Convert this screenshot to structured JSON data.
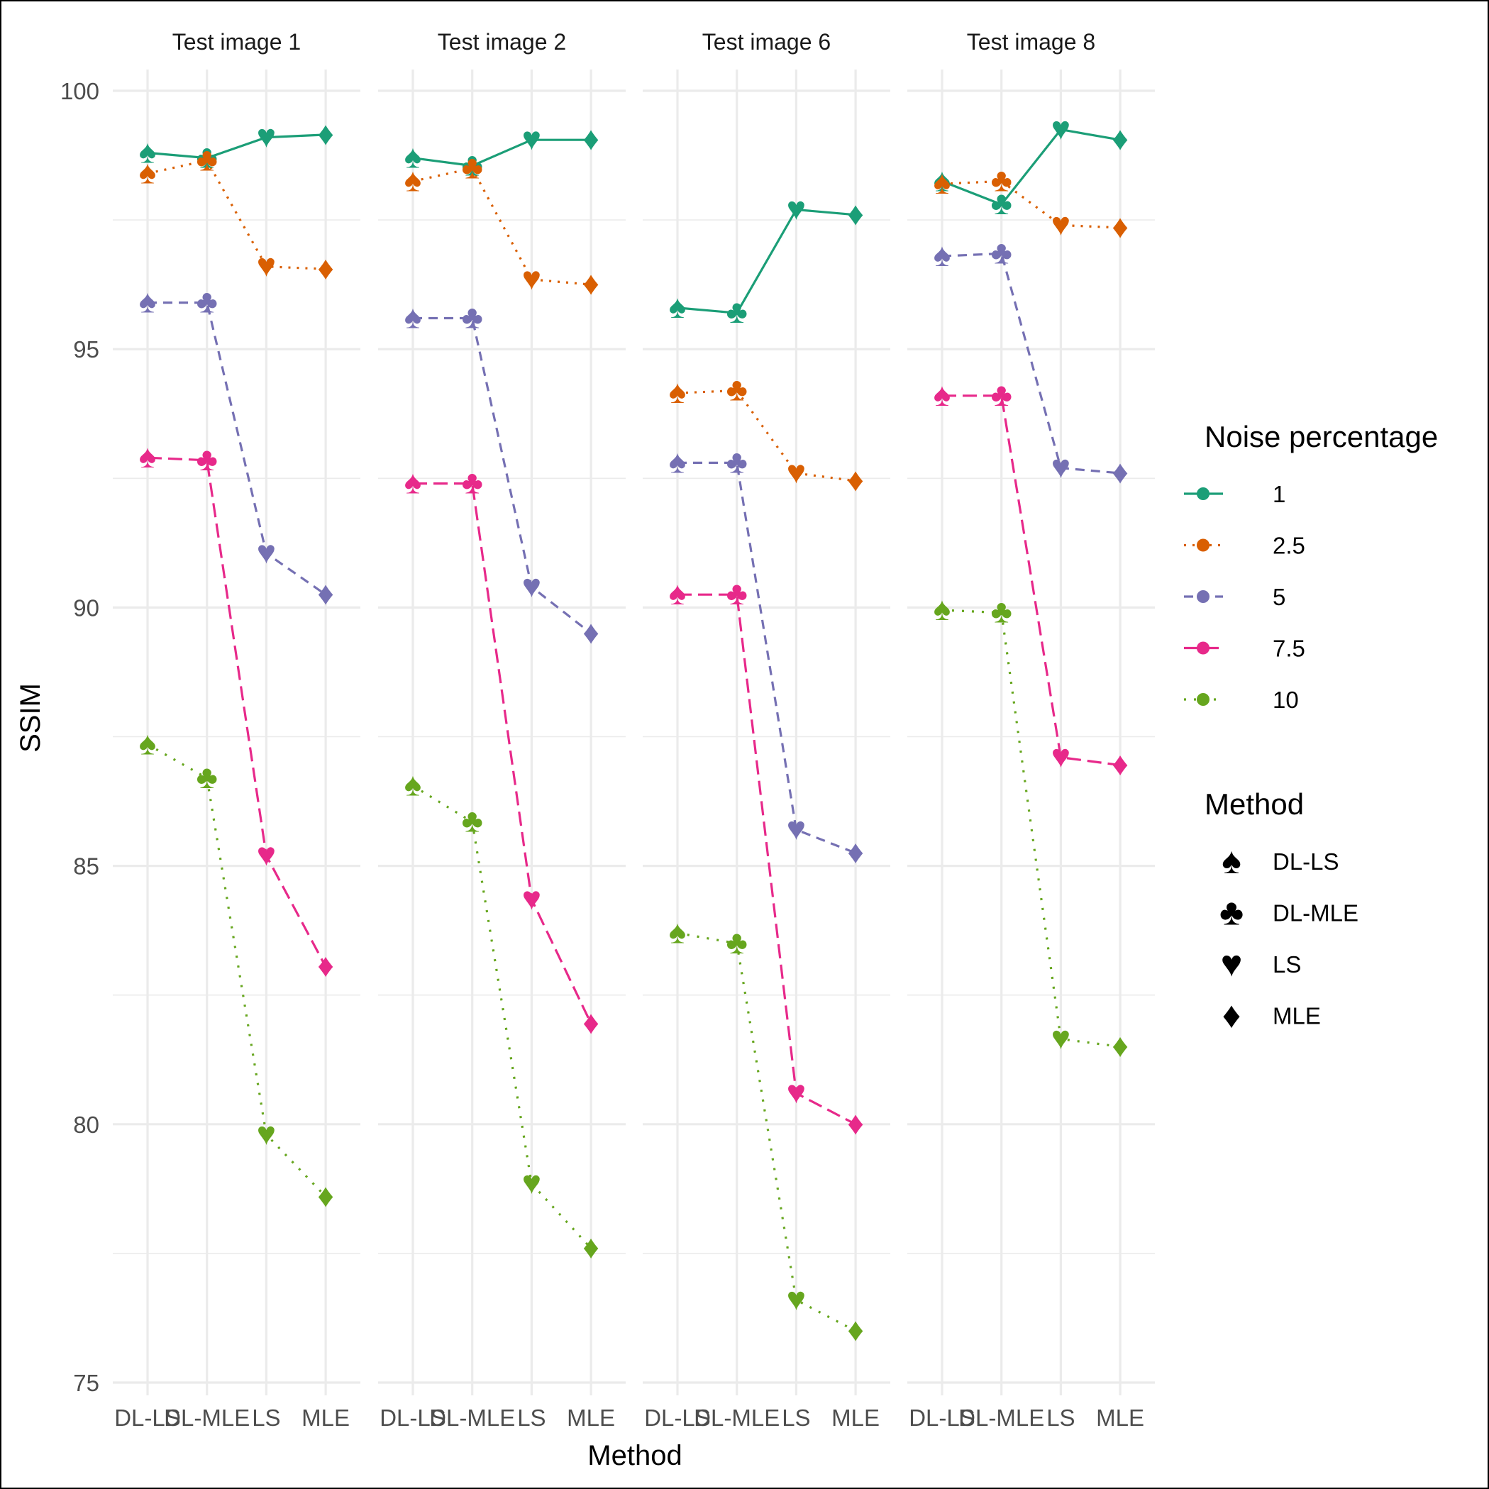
{
  "chart_data": {
    "type": "line",
    "xlabel": "Method",
    "ylabel": "SSIM",
    "ylim": [
      75,
      100
    ],
    "y_ticks": [
      75,
      80,
      85,
      90,
      95,
      100
    ],
    "y_tick_labels": [
      "75",
      "80",
      "85",
      "90",
      "95",
      "100"
    ],
    "categories": [
      "DL-LS",
      "DL-MLE",
      "LS",
      "MLE"
    ],
    "grid": true,
    "legend_position": "right",
    "legend_noise": {
      "title": "Noise percentage",
      "entries": [
        {
          "label": "1",
          "color": "#1b9e77",
          "dash": "solid"
        },
        {
          "label": "2.5",
          "color": "#d95f02",
          "dash": "dotted"
        },
        {
          "label": "5",
          "color": "#7570b3",
          "dash": "dashed"
        },
        {
          "label": "7.5",
          "color": "#e7298a",
          "dash": "longdash"
        },
        {
          "label": "10",
          "color": "#66a61e",
          "dash": "dotdash"
        }
      ]
    },
    "legend_method": {
      "title": "Method",
      "entries": [
        {
          "label": "DL-LS",
          "shape": "spade"
        },
        {
          "label": "DL-MLE",
          "shape": "club"
        },
        {
          "label": "LS",
          "shape": "heart"
        },
        {
          "label": "MLE",
          "shape": "diamond"
        }
      ]
    },
    "panels": [
      {
        "title": "Test image 1",
        "series": [
          {
            "noise": "1",
            "values": [
              98.8,
              98.7,
              99.1,
              99.15
            ]
          },
          {
            "noise": "2.5",
            "values": [
              98.4,
              98.65,
              96.6,
              96.55
            ]
          },
          {
            "noise": "5",
            "values": [
              95.9,
              95.9,
              91.05,
              90.25
            ]
          },
          {
            "noise": "7.5",
            "values": [
              92.9,
              92.85,
              85.2,
              83.05
            ]
          },
          {
            "noise": "10",
            "values": [
              87.35,
              86.7,
              79.8,
              78.6
            ]
          }
        ]
      },
      {
        "title": "Test image 2",
        "series": [
          {
            "noise": "1",
            "values": [
              98.7,
              98.55,
              99.05,
              99.05
            ]
          },
          {
            "noise": "2.5",
            "values": [
              98.25,
              98.5,
              96.35,
              96.25
            ]
          },
          {
            "noise": "5",
            "values": [
              95.6,
              95.6,
              90.4,
              89.5
            ]
          },
          {
            "noise": "7.5",
            "values": [
              92.4,
              92.4,
              84.35,
              81.95
            ]
          },
          {
            "noise": "10",
            "values": [
              86.55,
              85.85,
              78.85,
              77.6
            ]
          }
        ]
      },
      {
        "title": "Test image 6",
        "series": [
          {
            "noise": "1",
            "values": [
              95.8,
              95.7,
              97.7,
              97.6
            ]
          },
          {
            "noise": "2.5",
            "values": [
              94.15,
              94.2,
              92.6,
              92.45
            ]
          },
          {
            "noise": "5",
            "values": [
              92.8,
              92.8,
              85.7,
              85.25
            ]
          },
          {
            "noise": "7.5",
            "values": [
              90.25,
              90.25,
              80.6,
              80.0
            ]
          },
          {
            "noise": "10",
            "values": [
              83.7,
              83.5,
              76.6,
              76.0
            ]
          }
        ]
      },
      {
        "title": "Test image 8",
        "series": [
          {
            "noise": "1",
            "values": [
              98.25,
              97.8,
              99.25,
              99.05
            ]
          },
          {
            "noise": "2.5",
            "values": [
              98.2,
              98.25,
              97.4,
              97.35
            ]
          },
          {
            "noise": "5",
            "values": [
              96.8,
              96.85,
              92.7,
              92.6
            ]
          },
          {
            "noise": "7.5",
            "values": [
              94.1,
              94.1,
              87.1,
              86.95
            ]
          },
          {
            "noise": "10",
            "values": [
              89.95,
              89.9,
              81.65,
              81.5
            ]
          }
        ]
      }
    ]
  }
}
